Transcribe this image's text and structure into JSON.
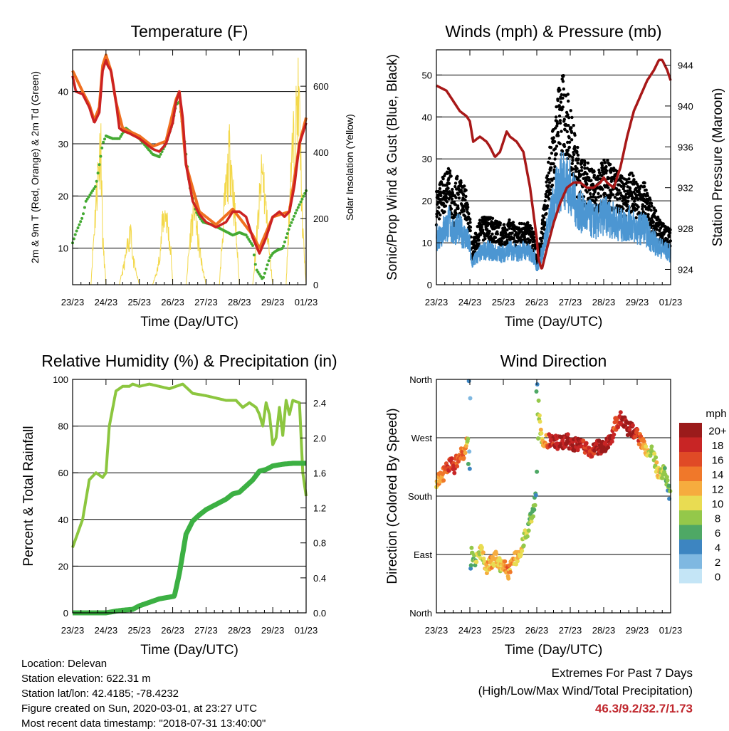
{
  "x_ticks": [
    "23/23",
    "24/23",
    "25/23",
    "26/23",
    "27/23",
    "28/23",
    "29/23",
    "01/23"
  ],
  "colors": {
    "temp": "#cc2222",
    "temp_9m": "#f07020",
    "dewpoint": "#44aa33",
    "solar": "#f3d84a",
    "wind": "#4c96d2",
    "gust": "#000000",
    "pressure": "#a81818",
    "rh": "#8cc63f",
    "precip": "#3cb043"
  },
  "chart_data": [
    {
      "id": "temperature",
      "type": "line",
      "title": "Temperature (F)",
      "xlabel": "Time (Day/UTC)",
      "ylabel": "2m & 9m T (Red, Orange) & 2m Td (Green)",
      "ylabel_right": "Solar Insolation (Yellow)",
      "ylim": [
        3,
        48
      ],
      "yticks": [
        10,
        20,
        30,
        40
      ],
      "y2lim": [
        0,
        710
      ],
      "y2ticks": [
        0,
        200,
        400,
        600
      ],
      "grid": true,
      "series": [
        {
          "role": "temp_2m",
          "x": [
            0,
            0.1,
            0.3,
            0.5,
            0.65,
            0.8,
            0.9,
            1.0,
            1.05,
            1.15,
            1.3,
            1.4,
            1.5,
            1.7,
            2.0,
            2.2,
            2.4,
            2.6,
            2.8,
            3.0,
            3.1,
            3.2,
            3.3,
            3.4,
            3.6,
            3.8,
            4.0,
            4.3,
            4.6,
            4.8,
            5.0,
            5.2,
            5.4,
            5.6,
            5.8,
            6.0,
            6.2,
            6.35,
            6.5,
            6.65,
            6.8,
            7.0
          ],
          "values": [
            43,
            40,
            39.5,
            37,
            34,
            36,
            44,
            46,
            45,
            44,
            38,
            33,
            32.5,
            32,
            31,
            30,
            29,
            28.5,
            30,
            34,
            38,
            40,
            35,
            26,
            19,
            16.5,
            15,
            14,
            15,
            17,
            17,
            16,
            12,
            9,
            12,
            16,
            17,
            16,
            17,
            22,
            30,
            34
          ]
        },
        {
          "role": "temp_9m",
          "x": [
            0,
            0.3,
            0.5,
            0.65,
            0.8,
            0.9,
            1.0,
            1.05,
            1.15,
            1.3,
            1.5,
            2.0,
            2.4,
            2.8,
            3.1,
            3.2,
            3.4,
            3.8,
            4.3,
            4.8,
            5.4,
            5.6,
            6.0,
            6.5,
            6.8,
            7.0
          ],
          "values": [
            44,
            40,
            37.5,
            34.5,
            37,
            45,
            47,
            46,
            44,
            38,
            33,
            31.5,
            29.5,
            30.5,
            38.5,
            40,
            26,
            17,
            14.5,
            17.5,
            12.5,
            10,
            16,
            17,
            30,
            35
          ]
        },
        {
          "role": "dewpoint",
          "x": [
            0,
            0.1,
            0.3,
            0.4,
            0.5,
            0.7,
            0.9,
            1.0,
            1.2,
            1.4,
            1.6,
            1.8,
            2.0,
            2.2,
            2.4,
            2.6,
            2.8,
            3.0,
            3.1,
            3.2,
            3.35,
            3.5,
            3.7,
            3.9,
            4.2,
            4.5,
            4.8,
            5.0,
            5.2,
            5.4,
            5.5,
            5.7,
            5.9,
            6.0,
            6.1,
            6.3,
            6.5,
            6.7,
            6.85,
            7.0
          ],
          "values": [
            11,
            13,
            16,
            19,
            20,
            22,
            30,
            31.5,
            31,
            31,
            33,
            32,
            31,
            29.5,
            28,
            27.5,
            30,
            34,
            37.5,
            38,
            31,
            22,
            17,
            15,
            14.5,
            13.5,
            12.5,
            13,
            12.5,
            10.5,
            6,
            4,
            8,
            9,
            9.5,
            10,
            14,
            17,
            19,
            21
          ]
        },
        {
          "role": "solar",
          "x": [
            0,
            0.55,
            0.6,
            0.75,
            0.85,
            0.9,
            1.0,
            1.05,
            1.4,
            1.55,
            1.7,
            1.75,
            1.8,
            2.0,
            2.4,
            2.55,
            2.65,
            2.7,
            2.8,
            2.95,
            3.0,
            3.4,
            3.55,
            3.65,
            3.7,
            3.75,
            3.9,
            4.0,
            4.4,
            4.55,
            4.65,
            4.7,
            4.75,
            4.9,
            5.0,
            5.4,
            5.55,
            5.65,
            5.7,
            5.75,
            5.9,
            6.0,
            6.4,
            6.55,
            6.7,
            6.75,
            6.8,
            6.9,
            7.0
          ],
          "values": [
            0,
            0,
            120,
            420,
            560,
            180,
            0,
            0,
            0,
            80,
            180,
            240,
            100,
            0,
            0,
            60,
            160,
            250,
            280,
            120,
            0,
            0,
            220,
            310,
            250,
            180,
            60,
            0,
            0,
            300,
            420,
            500,
            480,
            200,
            0,
            0,
            230,
            390,
            440,
            360,
            120,
            0,
            0,
            460,
            620,
            700,
            650,
            200,
            0
          ]
        }
      ]
    },
    {
      "id": "winds",
      "type": "scatter",
      "title": "Winds (mph) & Pressure (mb)",
      "xlabel": "Time (Day/UTC)",
      "ylabel": "Sonic/Prop Wind & Gust (Blue, Black)",
      "ylabel_right": "Station Pressure (Maroon)",
      "ylim": [
        0,
        56
      ],
      "yticks": [
        0,
        10,
        20,
        30,
        40,
        50
      ],
      "y2lim": [
        922.5,
        945.5
      ],
      "y2ticks": [
        924,
        928,
        932,
        936,
        940,
        944
      ],
      "grid": true,
      "series": [
        {
          "role": "wind",
          "x": [
            0,
            0.2,
            0.4,
            0.5,
            0.6,
            0.9,
            1.0,
            1.05,
            1.1,
            1.3,
            1.5,
            1.8,
            2.0,
            2.2,
            2.4,
            2.6,
            2.8,
            2.95,
            3.0,
            3.05,
            3.15,
            3.4,
            3.6,
            3.8,
            4.0,
            4.2,
            4.4,
            4.6,
            4.8,
            5.0,
            5.2,
            5.4,
            5.6,
            5.8,
            6.0,
            6.2,
            6.4,
            6.6,
            6.8,
            7.0
          ],
          "values": [
            12,
            14,
            16,
            13,
            15,
            12,
            10,
            5,
            6,
            8,
            9,
            8,
            8,
            9,
            8,
            9,
            8,
            7,
            4,
            5,
            8,
            17,
            24,
            28,
            25,
            20,
            18,
            17,
            16,
            18,
            17,
            16,
            15,
            16,
            14,
            15,
            12,
            10,
            9,
            8
          ]
        },
        {
          "role": "gust",
          "x": [
            0,
            0.2,
            0.4,
            0.5,
            0.6,
            0.9,
            1.0,
            1.05,
            1.1,
            1.3,
            1.5,
            1.8,
            2.0,
            2.2,
            2.4,
            2.6,
            2.8,
            2.95,
            3.0,
            3.05,
            3.15,
            3.4,
            3.6,
            3.8,
            4.0,
            4.2,
            4.4,
            4.6,
            4.8,
            5.0,
            5.2,
            5.4,
            5.6,
            5.8,
            6.0,
            6.2,
            6.4,
            6.6,
            6.8,
            7.0
          ],
          "values": [
            19,
            22,
            24,
            18,
            22,
            19,
            14,
            8,
            9,
            13,
            14,
            13,
            12,
            13,
            12,
            13,
            12,
            10,
            6,
            7,
            12,
            28,
            38,
            43,
            36,
            28,
            25,
            24,
            22,
            26,
            24,
            23,
            21,
            23,
            20,
            21,
            17,
            14,
            12,
            11
          ]
        },
        {
          "role": "pressure",
          "x": [
            0,
            0.3,
            0.5,
            0.7,
            0.9,
            1.0,
            1.1,
            1.3,
            1.5,
            1.6,
            1.75,
            1.9,
            2.1,
            2.2,
            2.4,
            2.6,
            2.8,
            3.0,
            3.05,
            3.15,
            3.3,
            3.5,
            3.7,
            3.9,
            4.1,
            4.3,
            4.5,
            4.7,
            4.9,
            5.0,
            5.1,
            5.3,
            5.5,
            5.7,
            5.9,
            6.1,
            6.3,
            6.5,
            6.65,
            6.75,
            6.9,
            7.0
          ],
          "values": [
            942,
            941.5,
            940.5,
            939.5,
            939,
            938.5,
            936.5,
            937,
            936.5,
            936,
            935,
            935.5,
            937.5,
            937,
            936.5,
            935.5,
            932,
            927,
            925,
            924,
            926,
            928.5,
            930.5,
            932,
            932.5,
            932.5,
            932,
            932,
            932.5,
            933,
            932.5,
            932,
            934,
            937,
            939.5,
            941,
            942.5,
            943.5,
            944.5,
            944.5,
            943.5,
            942.5
          ]
        }
      ]
    },
    {
      "id": "humidity",
      "type": "line",
      "title": "Relative Humidity (%) & Precipitation (in)",
      "xlabel": "Time (Day/UTC)",
      "ylabel": "Percent & Total Rainfall",
      "ylim": [
        0,
        100
      ],
      "yticks": [
        0,
        20,
        40,
        60,
        80,
        100
      ],
      "y2lim": [
        0,
        2.67
      ],
      "y2ticks": [
        0.0,
        0.4,
        0.8,
        1.2,
        1.6,
        2.0,
        2.4
      ],
      "grid": true,
      "series": [
        {
          "role": "rh",
          "x": [
            0,
            0.3,
            0.5,
            0.7,
            0.9,
            1.0,
            1.1,
            1.3,
            1.5,
            1.7,
            1.8,
            2.0,
            2.3,
            2.6,
            2.9,
            3.1,
            3.3,
            3.6,
            4.0,
            4.3,
            4.6,
            4.9,
            5.1,
            5.3,
            5.5,
            5.6,
            5.7,
            5.8,
            5.9,
            6.0,
            6.1,
            6.2,
            6.3,
            6.4,
            6.5,
            6.6,
            6.8,
            6.9,
            7.0
          ],
          "values": [
            28,
            40,
            57,
            60,
            58,
            60,
            80,
            95,
            97,
            97,
            98,
            97,
            98,
            97,
            96,
            97,
            98,
            94,
            93,
            92,
            91,
            91,
            88,
            90,
            88,
            85,
            80,
            90,
            85,
            72,
            75,
            88,
            76,
            91,
            85,
            91,
            90,
            60,
            50
          ]
        },
        {
          "role": "precip",
          "x": [
            0,
            0.5,
            1.0,
            1.3,
            1.5,
            1.8,
            2.0,
            2.3,
            2.6,
            2.9,
            3.05,
            3.2,
            3.4,
            3.6,
            3.8,
            4.0,
            4.2,
            4.6,
            4.8,
            5.0,
            5.2,
            5.4,
            5.6,
            5.8,
            6.0,
            6.3,
            6.6,
            6.9,
            7.0
          ],
          "values": [
            0,
            0,
            0,
            0.02,
            0.03,
            0.04,
            0.08,
            0.12,
            0.16,
            0.18,
            0.19,
            0.45,
            0.9,
            1.05,
            1.12,
            1.18,
            1.22,
            1.3,
            1.36,
            1.38,
            1.45,
            1.52,
            1.62,
            1.64,
            1.68,
            1.7,
            1.71,
            1.71,
            1.71
          ]
        }
      ]
    },
    {
      "id": "direction",
      "type": "scatter",
      "title": "Wind Direction",
      "xlabel": "Time (Day/UTC)",
      "ylabel": "Direction (Colored By Speed)",
      "ylim": [
        0,
        360
      ],
      "yticks": [
        0,
        90,
        180,
        270,
        360
      ],
      "ytick_labels": [
        "North",
        "East",
        "South",
        "West",
        "North"
      ],
      "grid": true,
      "legend": {
        "title": "mph",
        "placement": "right",
        "labels": [
          "20+",
          "18",
          "16",
          "14",
          "12",
          "10",
          "8",
          "6",
          "4",
          "2",
          "0"
        ],
        "colors": [
          "#9b1b1b",
          "#c82525",
          "#e04a26",
          "#f0782a",
          "#f6ac3e",
          "#e9dc52",
          "#94c84a",
          "#4ea865",
          "#3d85c1",
          "#7fb8e1",
          "#c4e5f6"
        ]
      },
      "series": [
        {
          "role": "direction",
          "x": [
            0,
            0.15,
            0.3,
            0.45,
            0.55,
            0.65,
            0.8,
            0.9,
            0.95,
            1.0,
            1.05,
            1.1,
            1.2,
            1.35,
            1.5,
            1.65,
            1.8,
            1.95,
            2.05,
            2.15,
            2.3,
            2.45,
            2.6,
            2.75,
            2.85,
            2.95,
            3.0,
            3.05,
            3.15,
            3.4,
            3.65,
            3.9,
            4.15,
            4.4,
            4.6,
            4.8,
            5.0,
            5.2,
            5.35,
            5.5,
            5.7,
            5.9,
            6.1,
            6.3,
            6.45,
            6.55,
            6.6,
            6.7,
            6.8,
            6.9,
            7.0
          ],
          "values": [
            205,
            210,
            220,
            232,
            225,
            240,
            245,
            260,
            268,
            30,
            90,
            85,
            80,
            95,
            70,
            80,
            85,
            70,
            75,
            60,
            80,
            90,
            110,
            130,
            150,
            170,
            200,
            320,
            260,
            268,
            262,
            265,
            260,
            255,
            250,
            255,
            258,
            265,
            290,
            300,
            285,
            280,
            265,
            250,
            255,
            230,
            220,
            210,
            230,
            200,
            175
          ],
          "speeds": [
            12,
            14,
            16,
            18,
            16,
            15,
            14,
            12,
            6,
            2,
            6,
            8,
            9,
            10,
            11,
            12,
            10,
            11,
            14,
            13,
            12,
            11,
            9,
            8,
            7,
            6,
            4,
            8,
            10,
            18,
            19,
            20,
            19,
            18,
            17,
            20,
            20,
            19,
            16,
            18,
            20,
            19,
            15,
            11,
            8,
            9,
            12,
            10,
            8,
            7,
            5
          ]
        }
      ]
    }
  ],
  "info": {
    "location": "Location: Delevan",
    "elevation": "Station elevation: 622.31 m",
    "latlon": "Station lat/lon: 42.4185; -78.4232",
    "created": "Figure created on Sun, 2020-03-01, at 23:27 UTC",
    "timestamp": "Most recent data timestamp: \"2018-07-31 13:40:00\""
  },
  "extremes": {
    "title": "Extremes For Past 7 Days",
    "subtitle": "(High/Low/Max Wind/Total Precipitation)",
    "values": "46.3/9.2/32.7/1.73"
  }
}
